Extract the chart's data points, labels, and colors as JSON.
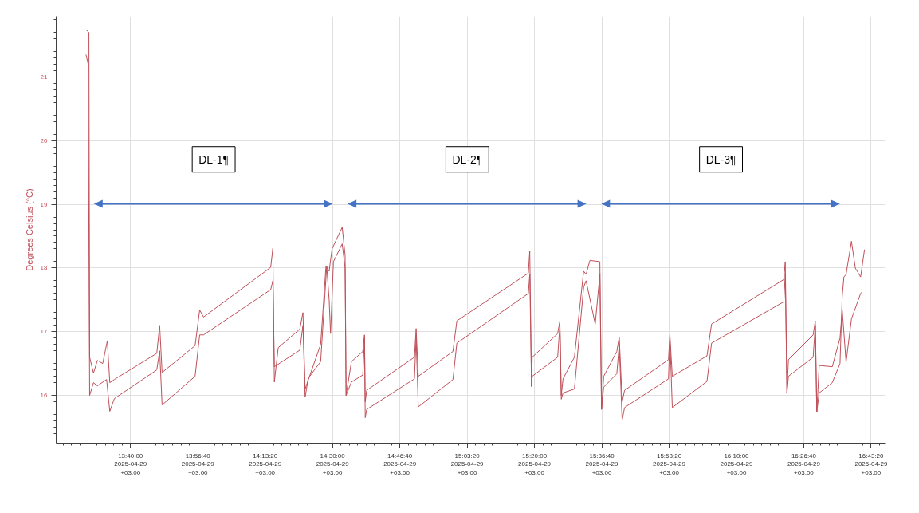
{
  "chart_data": {
    "type": "line",
    "ylabel": "Degrees Celsius (°C)",
    "xlim": [
      "2025-04-29T13:21:36",
      "2025-04-29T16:46:48"
    ],
    "ylim": [
      15.25,
      21.95
    ],
    "xticks": [
      {
        "value": "2025-04-29T13:40:00",
        "label": "13:40:00\n2025-04-29\n+03:00"
      },
      {
        "value": "2025-04-29T13:56:40",
        "label": "13:56:40\n2025-04-29\n+03:00"
      },
      {
        "value": "2025-04-29T14:13:20",
        "label": "14:13:20\n2025-04-29\n+03:00"
      },
      {
        "value": "2025-04-29T14:30:00",
        "label": "14:30:00\n2025-04-29\n+03:00"
      },
      {
        "value": "2025-04-29T14:46:40",
        "label": "14:46:40\n2025-04-29\n+03:00"
      },
      {
        "value": "2025-04-29T15:03:20",
        "label": "15:03:20\n2025-04-29\n+03:00"
      },
      {
        "value": "2025-04-29T15:20:00",
        "label": "15:20:00\n2025-04-29\n+03:00"
      },
      {
        "value": "2025-04-29T15:36:40",
        "label": "15:36:40\n2025-04-29\n+03:00"
      },
      {
        "value": "2025-04-29T15:53:20",
        "label": "15:53:20\n2025-04-29\n+03:00"
      },
      {
        "value": "2025-04-29T16:10:00",
        "label": "16:10:00\n2025-04-29\n+03:00"
      },
      {
        "value": "2025-04-29T16:26:40",
        "label": "16:26:40\n2025-04-29\n+03:00"
      },
      {
        "value": "2025-04-29T16:43:20",
        "label": "16:43:20\n2025-04-29\n+03:00"
      }
    ],
    "yticks": [
      16,
      17,
      18,
      19,
      20,
      21
    ],
    "grid": true,
    "marker": "none",
    "line_style": "solid",
    "annotations": [
      "DL-1¶",
      "DL-2¶",
      "DL-3¶"
    ],
    "series": [
      {
        "color": "#c0505a",
        "x": [
          "2025-04-29T13:28:59",
          "2025-04-29T13:29:42",
          "2025-04-29T13:29:53",
          "2025-04-29T13:30:50",
          "2025-04-29T13:31:48",
          "2025-04-29T13:33:07",
          "2025-04-29T13:34:16",
          "2025-04-29T13:34:52",
          "2025-04-29T13:36:00",
          "2025-04-29T13:46:30",
          "2025-04-29T13:47:13",
          "2025-04-29T13:47:49",
          "2025-04-29T13:55:59",
          "2025-04-29T13:57:07",
          "2025-04-29T13:58:05",
          "2025-04-29T14:14:42",
          "2025-04-29T14:15:14",
          "2025-04-29T14:15:36",
          "2025-04-29T14:16:34",
          "2025-04-29T14:21:54",
          "2025-04-29T14:22:41",
          "2025-04-29T14:23:13",
          "2025-04-29T14:27:04",
          "2025-04-29T14:28:23",
          "2025-04-29T14:29:10",
          "2025-04-29T14:29:53",
          "2025-04-29T14:32:24",
          "2025-04-29T14:33:07",
          "2025-04-29T14:33:22",
          "2025-04-29T14:34:41",
          "2025-04-29T14:37:30",
          "2025-04-29T14:37:55",
          "2025-04-29T14:38:06",
          "2025-04-29T14:38:28",
          "2025-04-29T14:50:17",
          "2025-04-29T14:50:42",
          "2025-04-29T14:51:14",
          "2025-04-29T14:59:49",
          "2025-04-29T15:00:47",
          "2025-04-29T15:18:29",
          "2025-04-29T15:18:50",
          "2025-04-29T15:19:16",
          "2025-04-29T15:19:26",
          "2025-04-29T15:25:44",
          "2025-04-29T15:26:17",
          "2025-04-29T15:26:38",
          "2025-04-29T15:27:04",
          "2025-04-29T15:29:53",
          "2025-04-29T15:32:10",
          "2025-04-29T15:32:46",
          "2025-04-29T15:33:43",
          "2025-04-29T15:36:11",
          "2025-04-29T15:36:36",
          "2025-04-29T15:37:08",
          "2025-04-29T15:40:23",
          "2025-04-29T15:40:59",
          "2025-04-29T15:41:42",
          "2025-04-29T15:42:18",
          "2025-04-29T15:53:10",
          "2025-04-29T15:53:31",
          "2025-04-29T15:54:07",
          "2025-04-29T16:02:42",
          "2025-04-29T16:03:50",
          "2025-04-29T16:21:43",
          "2025-04-29T16:22:05",
          "2025-04-29T16:22:30",
          "2025-04-29T16:22:52",
          "2025-04-29T16:28:59",
          "2025-04-29T16:29:31",
          "2025-04-29T16:29:53",
          "2025-04-29T16:30:29",
          "2025-04-29T16:33:43",
          "2025-04-29T16:35:38",
          "2025-04-29T16:36:11",
          "2025-04-29T16:36:36",
          "2025-04-29T16:37:08",
          "2025-04-29T16:38:28",
          "2025-04-29T16:39:25",
          "2025-04-29T16:40:44",
          "2025-04-29T16:41:42"
        ],
        "values": [
          21.74,
          21.7,
          16.6,
          16.35,
          16.55,
          16.5,
          16.86,
          16.2,
          16.25,
          16.66,
          17.1,
          16.36,
          16.78,
          17.34,
          17.23,
          18.01,
          18.31,
          16.21,
          16.75,
          17.04,
          17.3,
          16.1,
          16.8,
          18.03,
          17.95,
          18.3,
          18.64,
          18.2,
          16.0,
          16.53,
          16.69,
          16.95,
          15.9,
          16.08,
          16.6,
          17.05,
          16.3,
          16.69,
          17.17,
          17.92,
          18.27,
          16.14,
          16.6,
          16.97,
          17.17,
          16.0,
          16.26,
          16.6,
          17.95,
          17.9,
          18.12,
          18.1,
          15.78,
          16.3,
          16.69,
          16.92,
          15.9,
          16.08,
          16.56,
          16.95,
          16.3,
          16.62,
          17.12,
          17.82,
          18.1,
          16.04,
          16.56,
          16.95,
          17.17,
          15.74,
          16.04,
          16.2,
          16.5,
          17.56,
          17.86,
          17.9,
          18.42,
          18.0,
          17.86,
          18.29
        ]
      },
      {
        "color": "#c0505a",
        "x": [
          "2025-04-29T13:28:59",
          "2025-04-29T13:29:31",
          "2025-04-29T13:29:53",
          "2025-04-29T13:30:50",
          "2025-04-29T13:31:48",
          "2025-04-29T13:34:05",
          "2025-04-29T13:34:52",
          "2025-04-29T13:36:00",
          "2025-04-29T13:46:30",
          "2025-04-29T13:47:13",
          "2025-04-29T13:47:49",
          "2025-04-29T13:55:59",
          "2025-04-29T13:57:07",
          "2025-04-29T13:58:05",
          "2025-04-29T14:14:42",
          "2025-04-29T14:15:14",
          "2025-04-29T14:15:36",
          "2025-04-29T14:21:54",
          "2025-04-29T14:22:41",
          "2025-04-29T14:23:13",
          "2025-04-29T14:24:00",
          "2025-04-29T14:27:04",
          "2025-04-29T14:28:34",
          "2025-04-29T14:29:10",
          "2025-04-29T14:29:31",
          "2025-04-29T14:30:14",
          "2025-04-29T14:32:24",
          "2025-04-29T14:33:07",
          "2025-04-29T14:33:22",
          "2025-04-29T14:34:41",
          "2025-04-29T14:37:30",
          "2025-04-29T14:37:55",
          "2025-04-29T14:38:06",
          "2025-04-29T14:38:28",
          "2025-04-29T14:50:17",
          "2025-04-29T14:50:42",
          "2025-04-29T14:51:14",
          "2025-04-29T14:59:49",
          "2025-04-29T15:00:47",
          "2025-04-29T15:18:29",
          "2025-04-29T15:18:50",
          "2025-04-29T15:19:16",
          "2025-04-29T15:19:26",
          "2025-04-29T15:25:44",
          "2025-04-29T15:26:17",
          "2025-04-29T15:26:38",
          "2025-04-29T15:27:04",
          "2025-04-29T15:29:53",
          "2025-04-29T15:32:10",
          "2025-04-29T15:32:46",
          "2025-04-29T15:35:02",
          "2025-04-29T15:36:11",
          "2025-04-29T15:36:36",
          "2025-04-29T15:37:08",
          "2025-04-29T15:40:23",
          "2025-04-29T15:40:59",
          "2025-04-29T15:41:42",
          "2025-04-29T15:42:18",
          "2025-04-29T15:53:10",
          "2025-04-29T15:53:31",
          "2025-04-29T15:54:07",
          "2025-04-29T16:02:42",
          "2025-04-29T16:03:50",
          "2025-04-29T16:21:43",
          "2025-04-29T16:22:05",
          "2025-04-29T16:22:30",
          "2025-04-29T16:22:52",
          "2025-04-29T16:28:59",
          "2025-04-29T16:29:31",
          "2025-04-29T16:29:53",
          "2025-04-29T16:30:29",
          "2025-04-29T16:33:43",
          "2025-04-29T16:35:38",
          "2025-04-29T16:36:11",
          "2025-04-29T16:37:08",
          "2025-04-29T16:38:28",
          "2025-04-29T16:40:44",
          "2025-04-29T16:40:59"
        ],
        "values": [
          21.35,
          21.2,
          16.0,
          16.2,
          16.15,
          16.25,
          15.75,
          15.95,
          16.4,
          16.7,
          15.85,
          16.3,
          16.95,
          16.95,
          17.66,
          17.8,
          16.45,
          16.71,
          17.1,
          15.97,
          16.27,
          16.53,
          18.03,
          17.5,
          16.97,
          18.1,
          18.38,
          18.0,
          16.0,
          16.21,
          16.32,
          16.9,
          15.65,
          15.78,
          16.26,
          16.9,
          15.82,
          16.25,
          16.82,
          17.6,
          17.9,
          16.14,
          16.3,
          16.6,
          17.1,
          15.94,
          16.04,
          16.1,
          17.7,
          17.8,
          17.12,
          17.9,
          15.78,
          16.13,
          16.34,
          16.8,
          15.61,
          15.81,
          16.26,
          16.9,
          15.81,
          16.22,
          16.82,
          17.47,
          17.9,
          16.04,
          16.3,
          16.6,
          17.1,
          15.74,
          16.47,
          16.45,
          16.9,
          17.34,
          16.52,
          17.2,
          17.6,
          17.62
        ]
      }
    ]
  }
}
